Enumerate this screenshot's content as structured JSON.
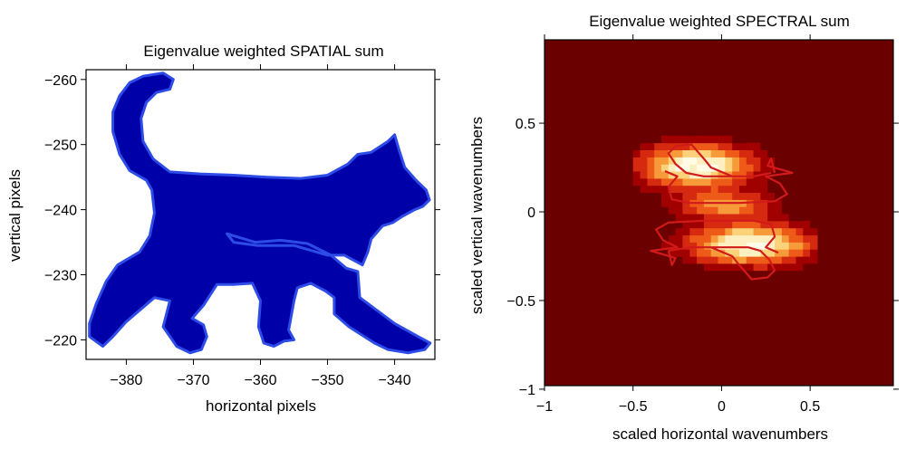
{
  "chart_data": [
    {
      "type": "heatmap",
      "title": "Eigenvalue weighted SPATIAL sum",
      "xlabel": "horizontal pixels",
      "ylabel": "vertical pixels",
      "xlim": [
        -386,
        -334
      ],
      "ylim": [
        -217,
        -261.5
      ],
      "y_axis_inverted": true,
      "grid": false,
      "legend": "none",
      "xticks": [
        -380,
        -370,
        -360,
        -350,
        -340
      ],
      "yticks": [
        -260,
        -250,
        -240,
        -230,
        -220
      ],
      "fill_color": "#0000a8",
      "outline_color": "#2d4be6",
      "shape_outline": [
        [
          -365.0,
          -236.3
        ],
        [
          -360.8,
          -235.0
        ],
        [
          -357.0,
          -235.3
        ],
        [
          -353.0,
          -234.8
        ],
        [
          -349.5,
          -233.0
        ],
        [
          -347.2,
          -231.0
        ],
        [
          -345.5,
          -230.5
        ],
        [
          -345.2,
          -226.5
        ],
        [
          -340.0,
          -222.5
        ],
        [
          -336.5,
          -220.5
        ],
        [
          -334.7,
          -219.5
        ],
        [
          -335.5,
          -218.5
        ],
        [
          -338.0,
          -218.0
        ],
        [
          -341.0,
          -218.5
        ],
        [
          -343.0,
          -219.5
        ],
        [
          -346.8,
          -222.0
        ],
        [
          -349.0,
          -224.0
        ],
        [
          -349.0,
          -226.5
        ],
        [
          -350.3,
          -227.5
        ],
        [
          -352.5,
          -228.7
        ],
        [
          -354.5,
          -228.0
        ],
        [
          -355.0,
          -226.0
        ],
        [
          -355.8,
          -221.5
        ],
        [
          -355.0,
          -220.0
        ],
        [
          -356.5,
          -219.8
        ],
        [
          -358.0,
          -219.0
        ],
        [
          -359.5,
          -219.5
        ],
        [
          -360.3,
          -222.0
        ],
        [
          -360.0,
          -226.0
        ],
        [
          -361.2,
          -228.7
        ],
        [
          -364.0,
          -228.5
        ],
        [
          -366.5,
          -228.5
        ],
        [
          -368.5,
          -225.3
        ],
        [
          -370.2,
          -223.3
        ],
        [
          -368.5,
          -222.3
        ],
        [
          -368.0,
          -220.5
        ],
        [
          -368.8,
          -218.5
        ],
        [
          -370.5,
          -218.0
        ],
        [
          -372.5,
          -219.0
        ],
        [
          -374.5,
          -222.0
        ],
        [
          -373.5,
          -226.0
        ],
        [
          -375.8,
          -226.5
        ],
        [
          -380.0,
          -222.8
        ],
        [
          -382.0,
          -220.5
        ],
        [
          -383.5,
          -219.0
        ],
        [
          -385.5,
          -220.5
        ],
        [
          -385.5,
          -222.5
        ],
        [
          -384.5,
          -225.5
        ],
        [
          -383.0,
          -229.0
        ],
        [
          -381.3,
          -231.5
        ],
        [
          -378.0,
          -233.5
        ],
        [
          -376.5,
          -236.0
        ],
        [
          -375.8,
          -239.5
        ],
        [
          -376.2,
          -243.0
        ],
        [
          -377.0,
          -244.5
        ],
        [
          -379.5,
          -246.0
        ],
        [
          -381.0,
          -248.5
        ],
        [
          -382.0,
          -252.0
        ],
        [
          -382.0,
          -255.0
        ],
        [
          -381.0,
          -257.5
        ],
        [
          -379.5,
          -259.5
        ],
        [
          -377.5,
          -260.5
        ],
        [
          -374.5,
          -261.0
        ],
        [
          -373.0,
          -260.0
        ],
        [
          -373.5,
          -258.5
        ],
        [
          -375.5,
          -258.0
        ],
        [
          -377.0,
          -256.5
        ],
        [
          -377.8,
          -254.0
        ],
        [
          -377.5,
          -250.5
        ],
        [
          -376.0,
          -247.8
        ],
        [
          -373.5,
          -245.8
        ],
        [
          -369.0,
          -245.5
        ],
        [
          -364.0,
          -245.3
        ],
        [
          -359.0,
          -245.0
        ],
        [
          -354.0,
          -244.8
        ],
        [
          -350.0,
          -245.3
        ],
        [
          -347.0,
          -247.0
        ],
        [
          -345.5,
          -248.5
        ],
        [
          -343.5,
          -248.8
        ],
        [
          -341.0,
          -250.5
        ],
        [
          -340.0,
          -251.5
        ],
        [
          -339.3,
          -249.0
        ],
        [
          -338.5,
          -246.5
        ],
        [
          -336.8,
          -244.5
        ],
        [
          -335.3,
          -243.0
        ],
        [
          -334.8,
          -241.5
        ],
        [
          -335.8,
          -240.5
        ],
        [
          -337.0,
          -240.0
        ],
        [
          -338.8,
          -239.0
        ],
        [
          -340.3,
          -238.0
        ],
        [
          -341.8,
          -237.5
        ],
        [
          -343.5,
          -235.5
        ],
        [
          -344.0,
          -233.5
        ],
        [
          -344.8,
          -231.5
        ],
        [
          -347.5,
          -233.0
        ],
        [
          -350.0,
          -233.0
        ],
        [
          -355.0,
          -234.5
        ],
        [
          -360.5,
          -234.5
        ],
        [
          -364.0,
          -235.0
        ]
      ]
    },
    {
      "type": "heatmap",
      "title": "Eigenvalue weighted SPECTRAL sum",
      "xlabel": "scaled horizontal wavenumbers",
      "ylabel": "scaled vertical wavenumbers",
      "xlim": [
        -1,
        0.97
      ],
      "ylim": [
        -0.98,
        0.97
      ],
      "grid": false,
      "legend": "none",
      "xticks": [
        -1,
        -0.5,
        0,
        0.5
      ],
      "xtick_labels": [
        "−1",
        "−0.5",
        "0",
        "0.5"
      ],
      "yticks": [
        -1,
        -0.5,
        0,
        0.5
      ],
      "ytick_labels": [
        "−1",
        "−0.5",
        "0",
        "0.5"
      ],
      "colormap": [
        "#6b0000",
        "#a10000",
        "#d62a10",
        "#ee5a18",
        "#f79a3a",
        "#fbd27a",
        "#fdefc0",
        "#fffbe6"
      ],
      "background_color": "#6b0000",
      "contour_color": "#d21a1a",
      "blobs": [
        {
          "center": [
            -0.16,
            0.24
          ],
          "sigma": [
            0.22,
            0.085
          ],
          "peak": 1.0
        },
        {
          "center": [
            0.14,
            -0.2
          ],
          "sigma": [
            0.24,
            0.08
          ],
          "peak": 1.0
        },
        {
          "center": [
            0.0,
            0.02
          ],
          "sigma": [
            0.18,
            0.05
          ],
          "peak": 0.6
        }
      ],
      "contours": [
        [
          [
            0.28,
            0.22
          ],
          [
            0.18,
            0.2
          ],
          [
            0.05,
            0.2
          ],
          [
            -0.1,
            0.2
          ],
          [
            -0.2,
            0.22
          ],
          [
            -0.26,
            0.27
          ],
          [
            -0.3,
            0.33
          ],
          [
            -0.26,
            0.37
          ],
          [
            -0.17,
            0.38
          ],
          [
            -0.1,
            0.3
          ],
          [
            -0.06,
            0.25
          ],
          [
            0.06,
            0.2
          ]
        ],
        [
          [
            -0.32,
            0.23
          ],
          [
            -0.25,
            0.2
          ],
          [
            -0.3,
            0.14
          ],
          [
            -0.28,
            0.07
          ],
          [
            -0.18,
            0.05
          ],
          [
            0.1,
            0.05
          ],
          [
            0.3,
            0.06
          ],
          [
            0.37,
            0.1
          ],
          [
            0.33,
            0.16
          ],
          [
            0.25,
            0.2
          ],
          [
            0.4,
            0.22
          ],
          [
            0.26,
            0.26
          ],
          [
            0.28,
            0.3
          ],
          [
            0.3,
            0.22
          ]
        ],
        [
          [
            -0.3,
            -0.22
          ],
          [
            -0.18,
            -0.2
          ],
          [
            0.0,
            -0.2
          ],
          [
            0.15,
            -0.2
          ],
          [
            0.22,
            -0.22
          ],
          [
            0.27,
            -0.27
          ],
          [
            0.3,
            -0.33
          ],
          [
            0.26,
            -0.37
          ],
          [
            0.17,
            -0.38
          ],
          [
            0.1,
            -0.3
          ],
          [
            0.06,
            -0.25
          ],
          [
            -0.06,
            -0.2
          ]
        ],
        [
          [
            0.32,
            -0.23
          ],
          [
            0.25,
            -0.2
          ],
          [
            0.3,
            -0.14
          ],
          [
            0.28,
            -0.07
          ],
          [
            0.18,
            -0.05
          ],
          [
            -0.1,
            -0.05
          ],
          [
            -0.3,
            -0.06
          ],
          [
            -0.37,
            -0.1
          ],
          [
            -0.33,
            -0.16
          ],
          [
            -0.25,
            -0.2
          ],
          [
            -0.4,
            -0.22
          ],
          [
            -0.26,
            -0.26
          ],
          [
            -0.28,
            -0.3
          ],
          [
            -0.3,
            -0.22
          ]
        ]
      ]
    }
  ]
}
